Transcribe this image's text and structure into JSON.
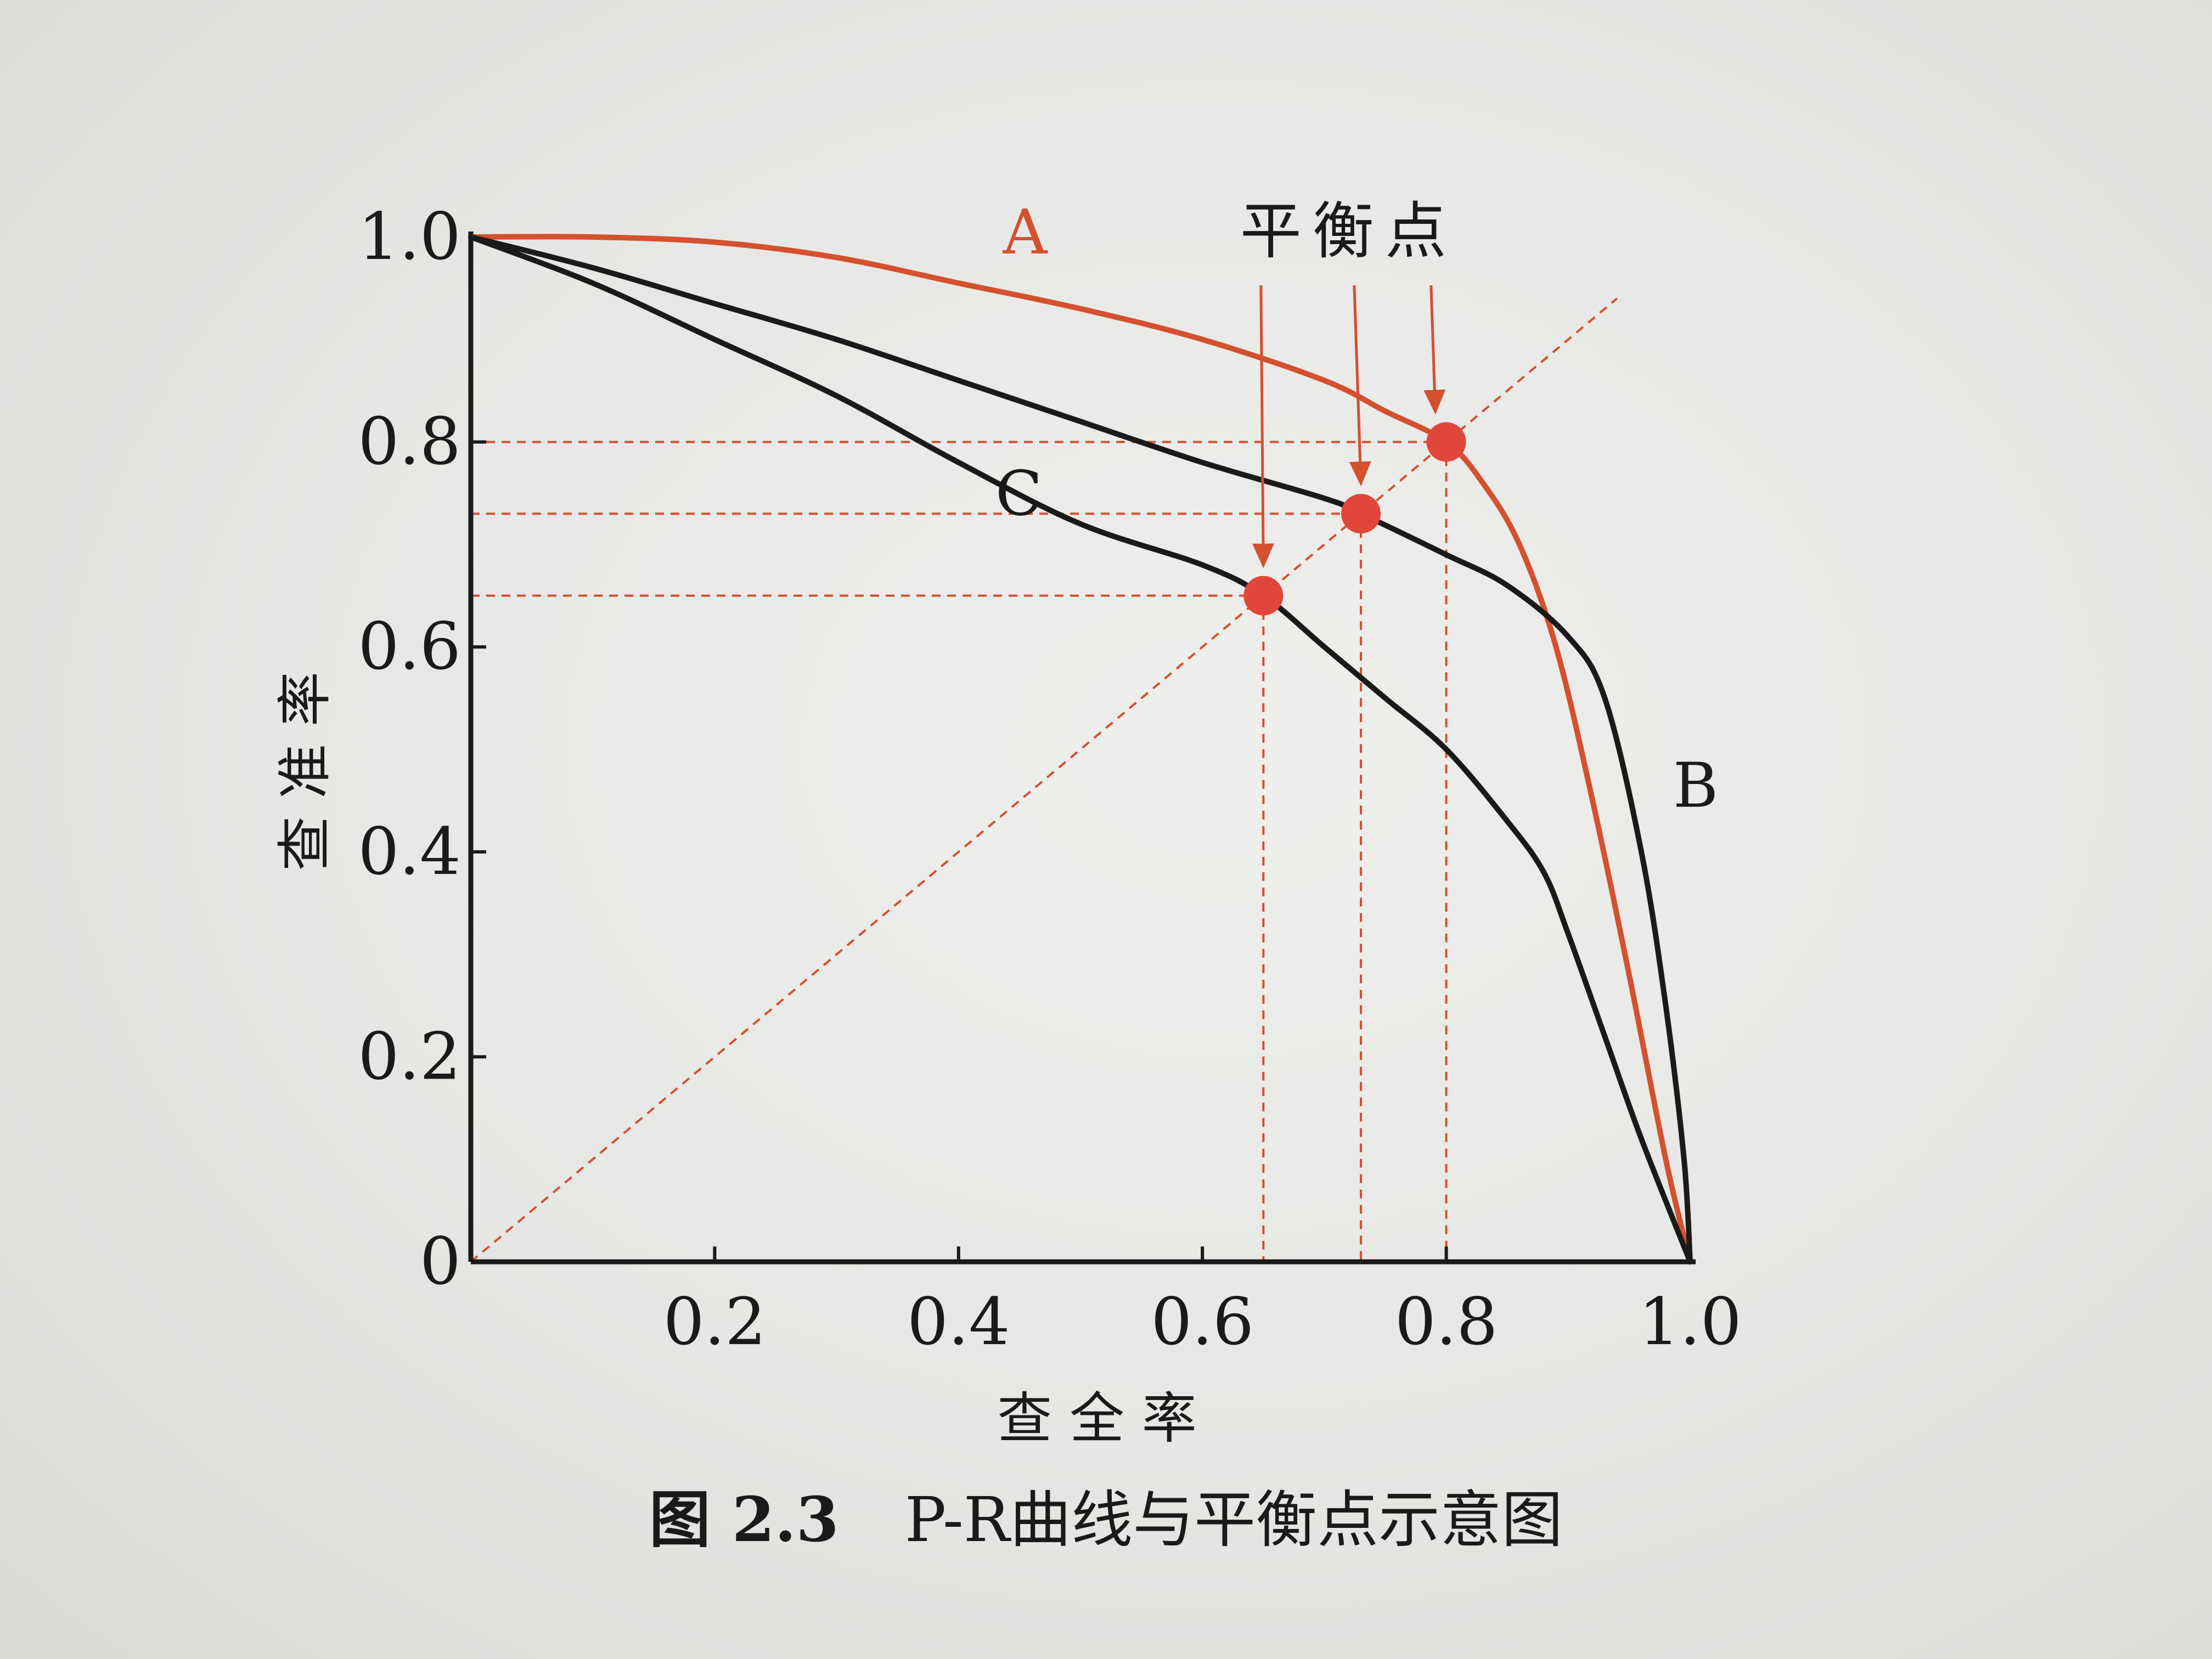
{
  "chart_data": {
    "type": "line",
    "title": "",
    "xlabel": "查 全 率",
    "ylabel": "查 准 率",
    "xlim": [
      0,
      1
    ],
    "ylim": [
      0,
      1
    ],
    "x_ticks": [
      "0.2",
      "0.4",
      "0.6",
      "0.8",
      "1.0"
    ],
    "y_ticks": [
      "0",
      "0.2",
      "0.4",
      "0.6",
      "0.8",
      "1.0"
    ],
    "grid": false,
    "legend": "none",
    "series": [
      {
        "name": "A",
        "color": "#d4502e",
        "points": [
          [
            0,
            1.0
          ],
          [
            0.1,
            1.0
          ],
          [
            0.2,
            0.995
          ],
          [
            0.3,
            0.98
          ],
          [
            0.4,
            0.955
          ],
          [
            0.5,
            0.93
          ],
          [
            0.6,
            0.9
          ],
          [
            0.7,
            0.86
          ],
          [
            0.75,
            0.83
          ],
          [
            0.8,
            0.8
          ],
          [
            0.83,
            0.76
          ],
          [
            0.86,
            0.7
          ],
          [
            0.89,
            0.6
          ],
          [
            0.92,
            0.45
          ],
          [
            0.95,
            0.28
          ],
          [
            0.98,
            0.1
          ],
          [
            1.0,
            0.0
          ]
        ]
      },
      {
        "name": "B",
        "color": "#1a1a1a",
        "points": [
          [
            0,
            1.0
          ],
          [
            0.1,
            0.97
          ],
          [
            0.2,
            0.935
          ],
          [
            0.3,
            0.9
          ],
          [
            0.4,
            0.86
          ],
          [
            0.5,
            0.82
          ],
          [
            0.6,
            0.78
          ],
          [
            0.7,
            0.745
          ],
          [
            0.73,
            0.73
          ],
          [
            0.8,
            0.69
          ],
          [
            0.85,
            0.66
          ],
          [
            0.9,
            0.61
          ],
          [
            0.93,
            0.55
          ],
          [
            0.96,
            0.4
          ],
          [
            0.98,
            0.25
          ],
          [
            0.995,
            0.1
          ],
          [
            1.0,
            0.0
          ]
        ]
      },
      {
        "name": "C",
        "color": "#1a1a1a",
        "points": [
          [
            0,
            1.0
          ],
          [
            0.1,
            0.955
          ],
          [
            0.2,
            0.9
          ],
          [
            0.3,
            0.845
          ],
          [
            0.4,
            0.78
          ],
          [
            0.5,
            0.72
          ],
          [
            0.6,
            0.68
          ],
          [
            0.65,
            0.65
          ],
          [
            0.7,
            0.6
          ],
          [
            0.75,
            0.55
          ],
          [
            0.8,
            0.5
          ],
          [
            0.85,
            0.43
          ],
          [
            0.88,
            0.38
          ],
          [
            0.9,
            0.32
          ],
          [
            0.93,
            0.22
          ],
          [
            0.96,
            0.12
          ],
          [
            1.0,
            0.0
          ]
        ]
      }
    ],
    "balance_points": [
      {
        "x": 0.8,
        "y": 0.8
      },
      {
        "x": 0.73,
        "y": 0.73
      },
      {
        "x": 0.65,
        "y": 0.65
      }
    ],
    "diagonal": {
      "from": [
        0,
        0
      ],
      "to": [
        0.94,
        0.94
      ]
    },
    "annotations": [
      {
        "text": "平衡点",
        "color": "#d4502e"
      }
    ]
  },
  "caption": {
    "figure_number": "图 2.3",
    "text": "P-R曲线与平衡点示意图"
  }
}
